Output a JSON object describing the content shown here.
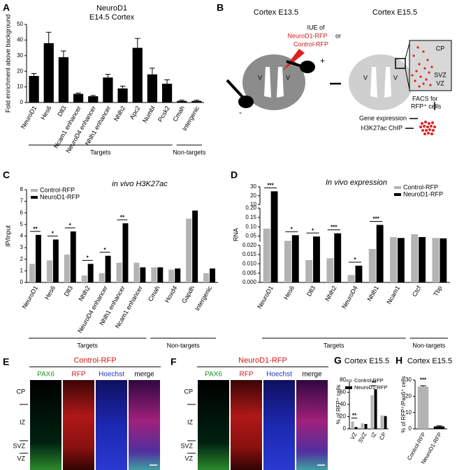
{
  "chart_data": [
    {
      "panel": "A",
      "type": "bar",
      "title": "NeuroD1",
      "subtitle": "E14.5 Cortex",
      "y_label": "Fold enrichment above background",
      "categories": [
        "NeuroD1",
        "Hes6",
        "Dll3",
        "Ncam1 enhancer",
        "NeuroD4 enhancer",
        "Nhlh1 enhancer",
        "Nhlh2",
        "Apc2",
        "Numbl",
        "Pcsk2",
        "Cmah",
        "Intergenic"
      ],
      "category_group": [
        "Targets",
        "Targets",
        "Targets",
        "Targets",
        "Targets",
        "Targets",
        "Targets",
        "Targets",
        "Targets",
        "Targets",
        "Non-targets",
        "Non-targets"
      ],
      "values": [
        17,
        38,
        29,
        5.5,
        4,
        16,
        9,
        35,
        18,
        12,
        1,
        1
      ],
      "errors": [
        1.5,
        7,
        4,
        0.5,
        0.5,
        2,
        1.5,
        6,
        4,
        2.5,
        0.5,
        0.5
      ],
      "color": "#000000",
      "ylim": [
        0,
        50
      ],
      "yticks": [
        0,
        10,
        20,
        30,
        40,
        50
      ]
    },
    {
      "panel": "C",
      "type": "bar",
      "title": "in vivo H3K27ac",
      "y_label": "IP/Input",
      "categories": [
        "NeuroD1",
        "Hes6",
        "Dll3",
        "Nhlh2",
        "NeuroD4 enhancer",
        "Nhlh1 enhancer",
        "Ncam1 enhancer",
        "Cmah",
        "Hoxd4",
        "Gapdh",
        "Intergenic"
      ],
      "category_group": [
        "Targets",
        "Targets",
        "Targets",
        "Targets",
        "Targets",
        "Targets",
        "Targets",
        "Non-targets",
        "Non-targets",
        "Non-targets",
        "Non-targets"
      ],
      "series": [
        {
          "name": "Control-RFP",
          "color": "#b3b3b3",
          "values": [
            1.6,
            1.9,
            2.4,
            0.6,
            0.8,
            1.7,
            1.7,
            1.3,
            1.1,
            5.5,
            0.8
          ]
        },
        {
          "name": "NeuroD1-RFP",
          "color": "#000000",
          "values": [
            4.1,
            3.7,
            4.4,
            1.6,
            2.3,
            5.1,
            1.3,
            1.3,
            1.2,
            6.2,
            1.2
          ]
        }
      ],
      "significance": [
        "**",
        "*",
        "*",
        "*",
        "*",
        "**",
        null,
        null,
        null,
        null,
        null
      ],
      "legend": "upper left",
      "ylim": [
        0,
        8
      ],
      "yticks": [
        0,
        1,
        2,
        3,
        4,
        5,
        6,
        7,
        8
      ]
    },
    {
      "panel": "D",
      "type": "bar",
      "title": "In vivo expression",
      "y_label": "RNA",
      "categories": [
        "NeuroD1",
        "Hes6",
        "Dll3",
        "Nhlh2",
        "NeuroD4",
        "Nhlh1",
        "Ncam1",
        "Ctcf",
        "Tbp"
      ],
      "category_group": [
        "Targets",
        "Targets",
        "Targets",
        "Targets",
        "Targets",
        "Targets",
        "Targets",
        "Non-targets",
        "Non-targets"
      ],
      "series": [
        {
          "name": "Control-RFP",
          "color": "#b3b3b3",
          "values": [
            0.09,
            0.025,
            0.012,
            0.013,
            0.004,
            0.018,
            0.045,
            0.06,
            0.04
          ]
        },
        {
          "name": "NeuroD1-RFP",
          "color": "#000000",
          "values": [
            25,
            0.055,
            0.048,
            0.065,
            0.009,
            0.11,
            0.04,
            0.045,
            0.038
          ]
        }
      ],
      "significance": [
        "***",
        "*",
        "*",
        "***",
        "*",
        "***",
        null,
        null,
        null
      ],
      "legend": "upper right",
      "ylim": [
        0,
        30
      ],
      "y_segments": [
        [
          0,
          0.02
        ],
        [
          0.02,
          0.2
        ],
        [
          10,
          30
        ]
      ],
      "yticks": [
        {
          "value": 0,
          "label": "0.000"
        },
        0.005,
        {
          "value": 0.01,
          "label": "0.010"
        },
        0.015,
        {
          "value": 0.02,
          "label": "0.020"
        },
        0.05,
        {
          "value": 0.1,
          "label": "0.10"
        },
        0.15,
        {
          "value": 0.2,
          "label": "0.20"
        },
        10,
        20,
        30
      ]
    },
    {
      "panel": "G",
      "type": "bar",
      "title": "Cortex E15.5",
      "y_label": "% of RFP⁺ cells",
      "categories": [
        "VZ",
        "SVZ",
        "IZ",
        "CP"
      ],
      "series": [
        {
          "name": "Control-RFP",
          "color": "#b3b3b3",
          "values": [
            12,
            9,
            55,
            22
          ]
        },
        {
          "name": "NeuroD1-RFP",
          "color": "#000000",
          "values": [
            3,
            8,
            65,
            21
          ]
        }
      ],
      "significance": [
        "**",
        null,
        "**",
        null
      ],
      "legend": "upper right",
      "ylim": [
        0,
        80
      ],
      "yticks": [
        0,
        20,
        40,
        60,
        80
      ]
    },
    {
      "panel": "H",
      "type": "bar",
      "title": "Cortex E15.5",
      "y_label": "% of RFP⁺/Pax6⁺ cells",
      "categories": [
        "Control-RFP",
        "NeuroD1-RFP"
      ],
      "values": [
        26,
        1.5
      ],
      "errors": [
        0.5,
        0.4
      ],
      "colors": [
        "#b3b3b3",
        "#000000"
      ],
      "significance": [
        "***"
      ],
      "ylim": [
        0,
        30
      ],
      "yticks": [
        0,
        10,
        20,
        30
      ]
    }
  ],
  "diagram_b": {
    "panel": "B",
    "left_title": "Cortex E13.5",
    "right_title": "Cortex E15.5",
    "iue": "IUE of",
    "option1": "NeuroD1-RFP",
    "or": "or",
    "option2": "Control-RFP",
    "ventricle": "V",
    "plus": "+",
    "minus": "-",
    "zones": [
      "CP",
      "SVZ",
      "VZ"
    ],
    "facs": "FACS for",
    "facs_cells": "RFP⁺ cells",
    "gene_expression": "Gene expression",
    "chip": "H3K27ac ChIP"
  },
  "images": [
    {
      "panel": "E",
      "title": "Control-RFP",
      "channels": [
        "PAX6",
        "RFP",
        "Hoechst",
        "merge"
      ],
      "zones": [
        "CP",
        "IZ",
        "SVZ",
        "VZ"
      ]
    },
    {
      "panel": "F",
      "title": "NeuroD1-RFP",
      "channels": [
        "PAX6",
        "RFP",
        "Hoechst",
        "merge"
      ],
      "zones": [
        "CP",
        "IZ",
        "SVZ",
        "VZ"
      ]
    }
  ]
}
